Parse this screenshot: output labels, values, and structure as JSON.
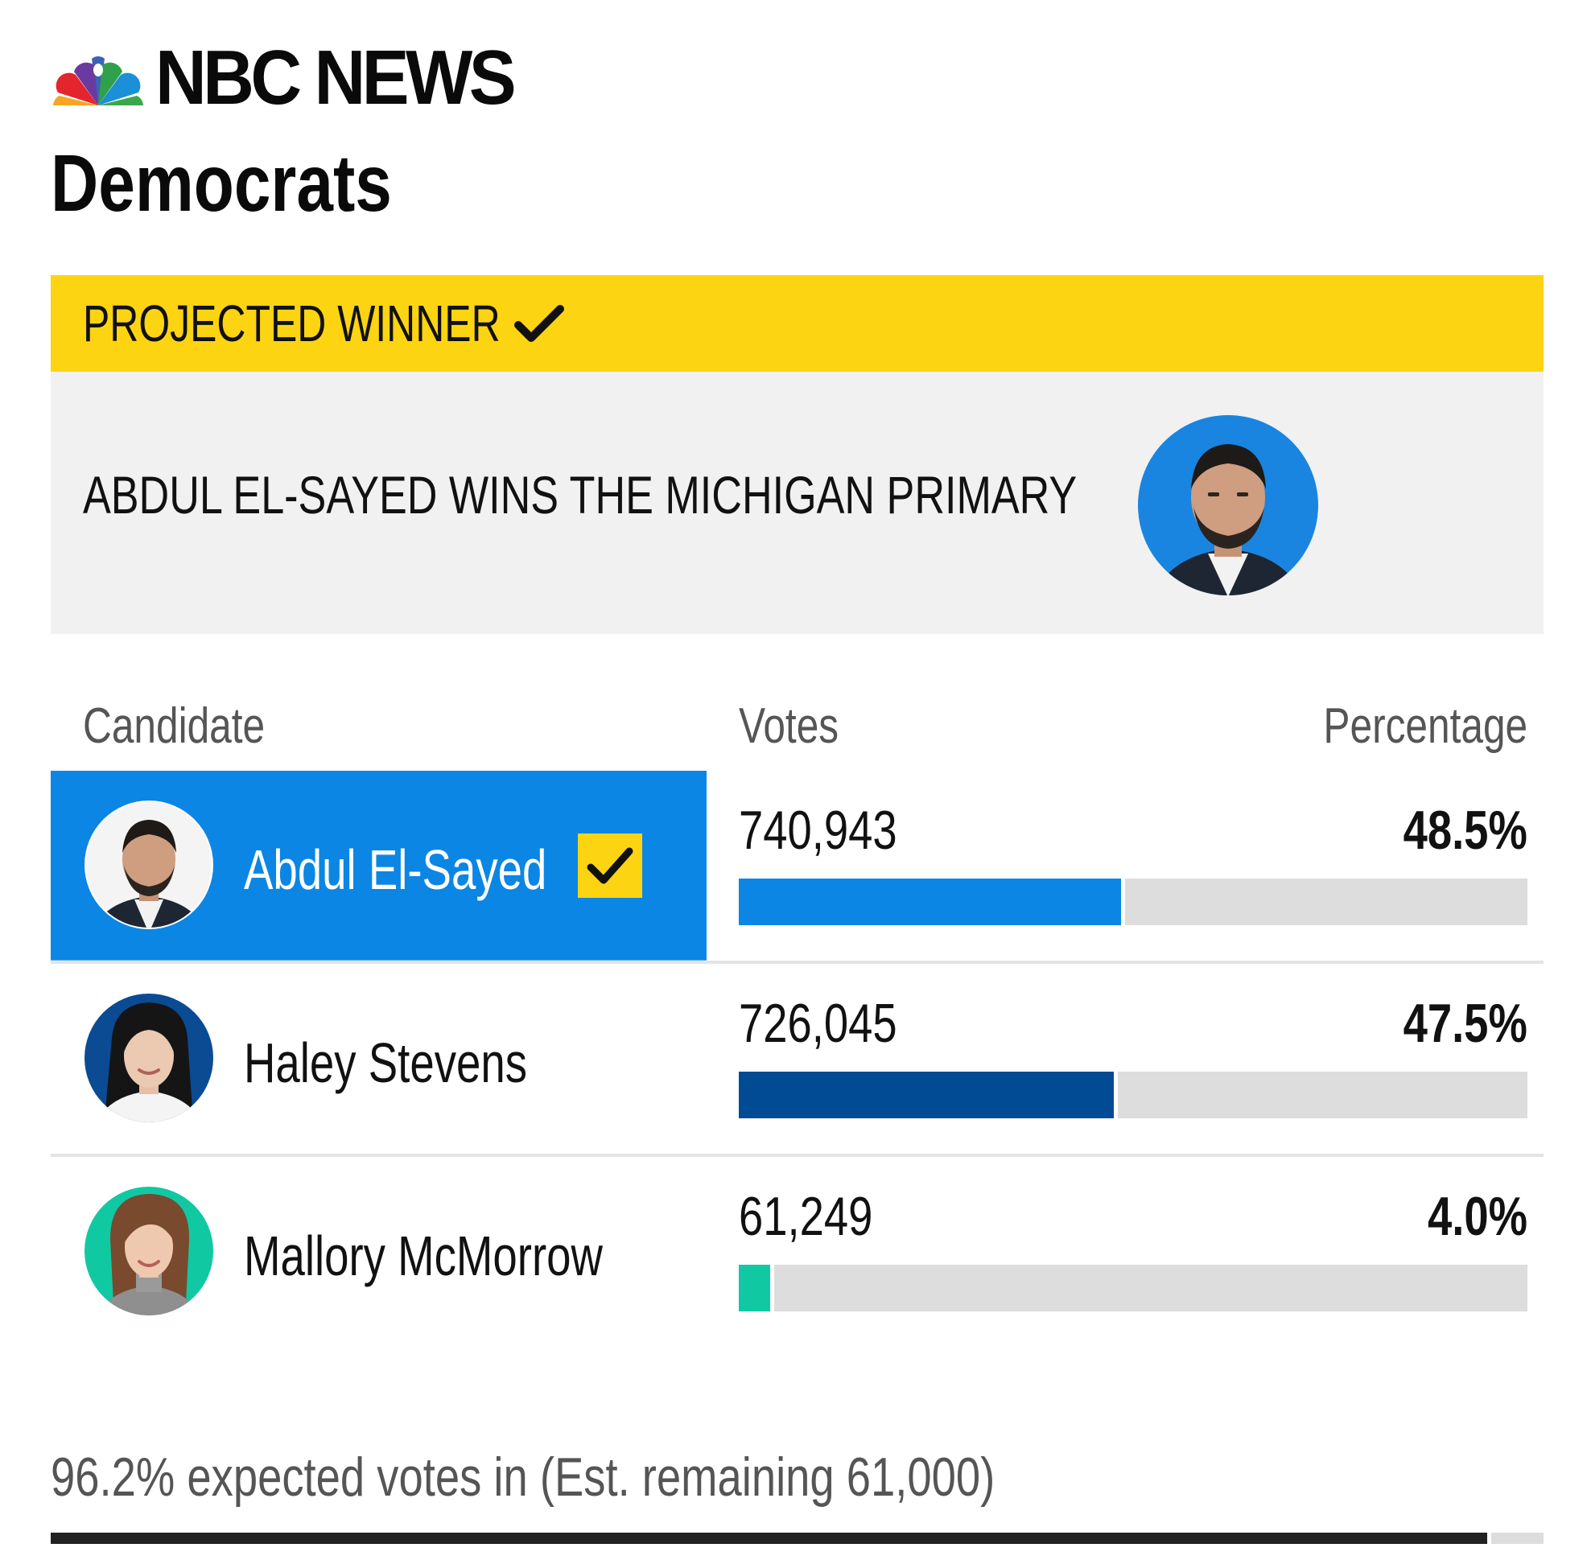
{
  "brand": {
    "logo_icon": "nbc-peacock-icon",
    "name": "NBC NEWS"
  },
  "section_title": "Democrats",
  "winner": {
    "banner_label": "PROJECTED WINNER",
    "banner_icon": "checkmark-icon",
    "headline": "ABDUL EL-SAYED WINS THE MICHIGAN PRIMARY",
    "photo_icon": "candidate-photo-icon"
  },
  "table": {
    "headers": {
      "candidate": "Candidate",
      "votes": "Votes",
      "percentage": "Percentage"
    },
    "rows": [
      {
        "name": "Abdul El-Sayed",
        "votes": "740,943",
        "percentage": "48.5%",
        "share": 48.5,
        "winner": true,
        "bar_color": "#0b86e4",
        "ring_color": "#0b86e4"
      },
      {
        "name": "Haley Stevens",
        "votes": "726,045",
        "percentage": "47.5%",
        "share": 47.5,
        "winner": false,
        "bar_color": "#004b93",
        "ring_color": "#004b93"
      },
      {
        "name": "Mallory McMorrow",
        "votes": "61,249",
        "percentage": "4.0%",
        "share": 4.0,
        "winner": false,
        "bar_color": "#10c9a3",
        "ring_color": "#10c9a3"
      }
    ]
  },
  "reporting": {
    "text": "96.2% expected votes in (Est. remaining 61,000)",
    "share": 96.2
  },
  "colors": {
    "banner_yellow": "#fdd411",
    "winner_blue": "#0b86e4",
    "panel_gray": "#f1f1f1",
    "track_gray": "#dddddd"
  }
}
